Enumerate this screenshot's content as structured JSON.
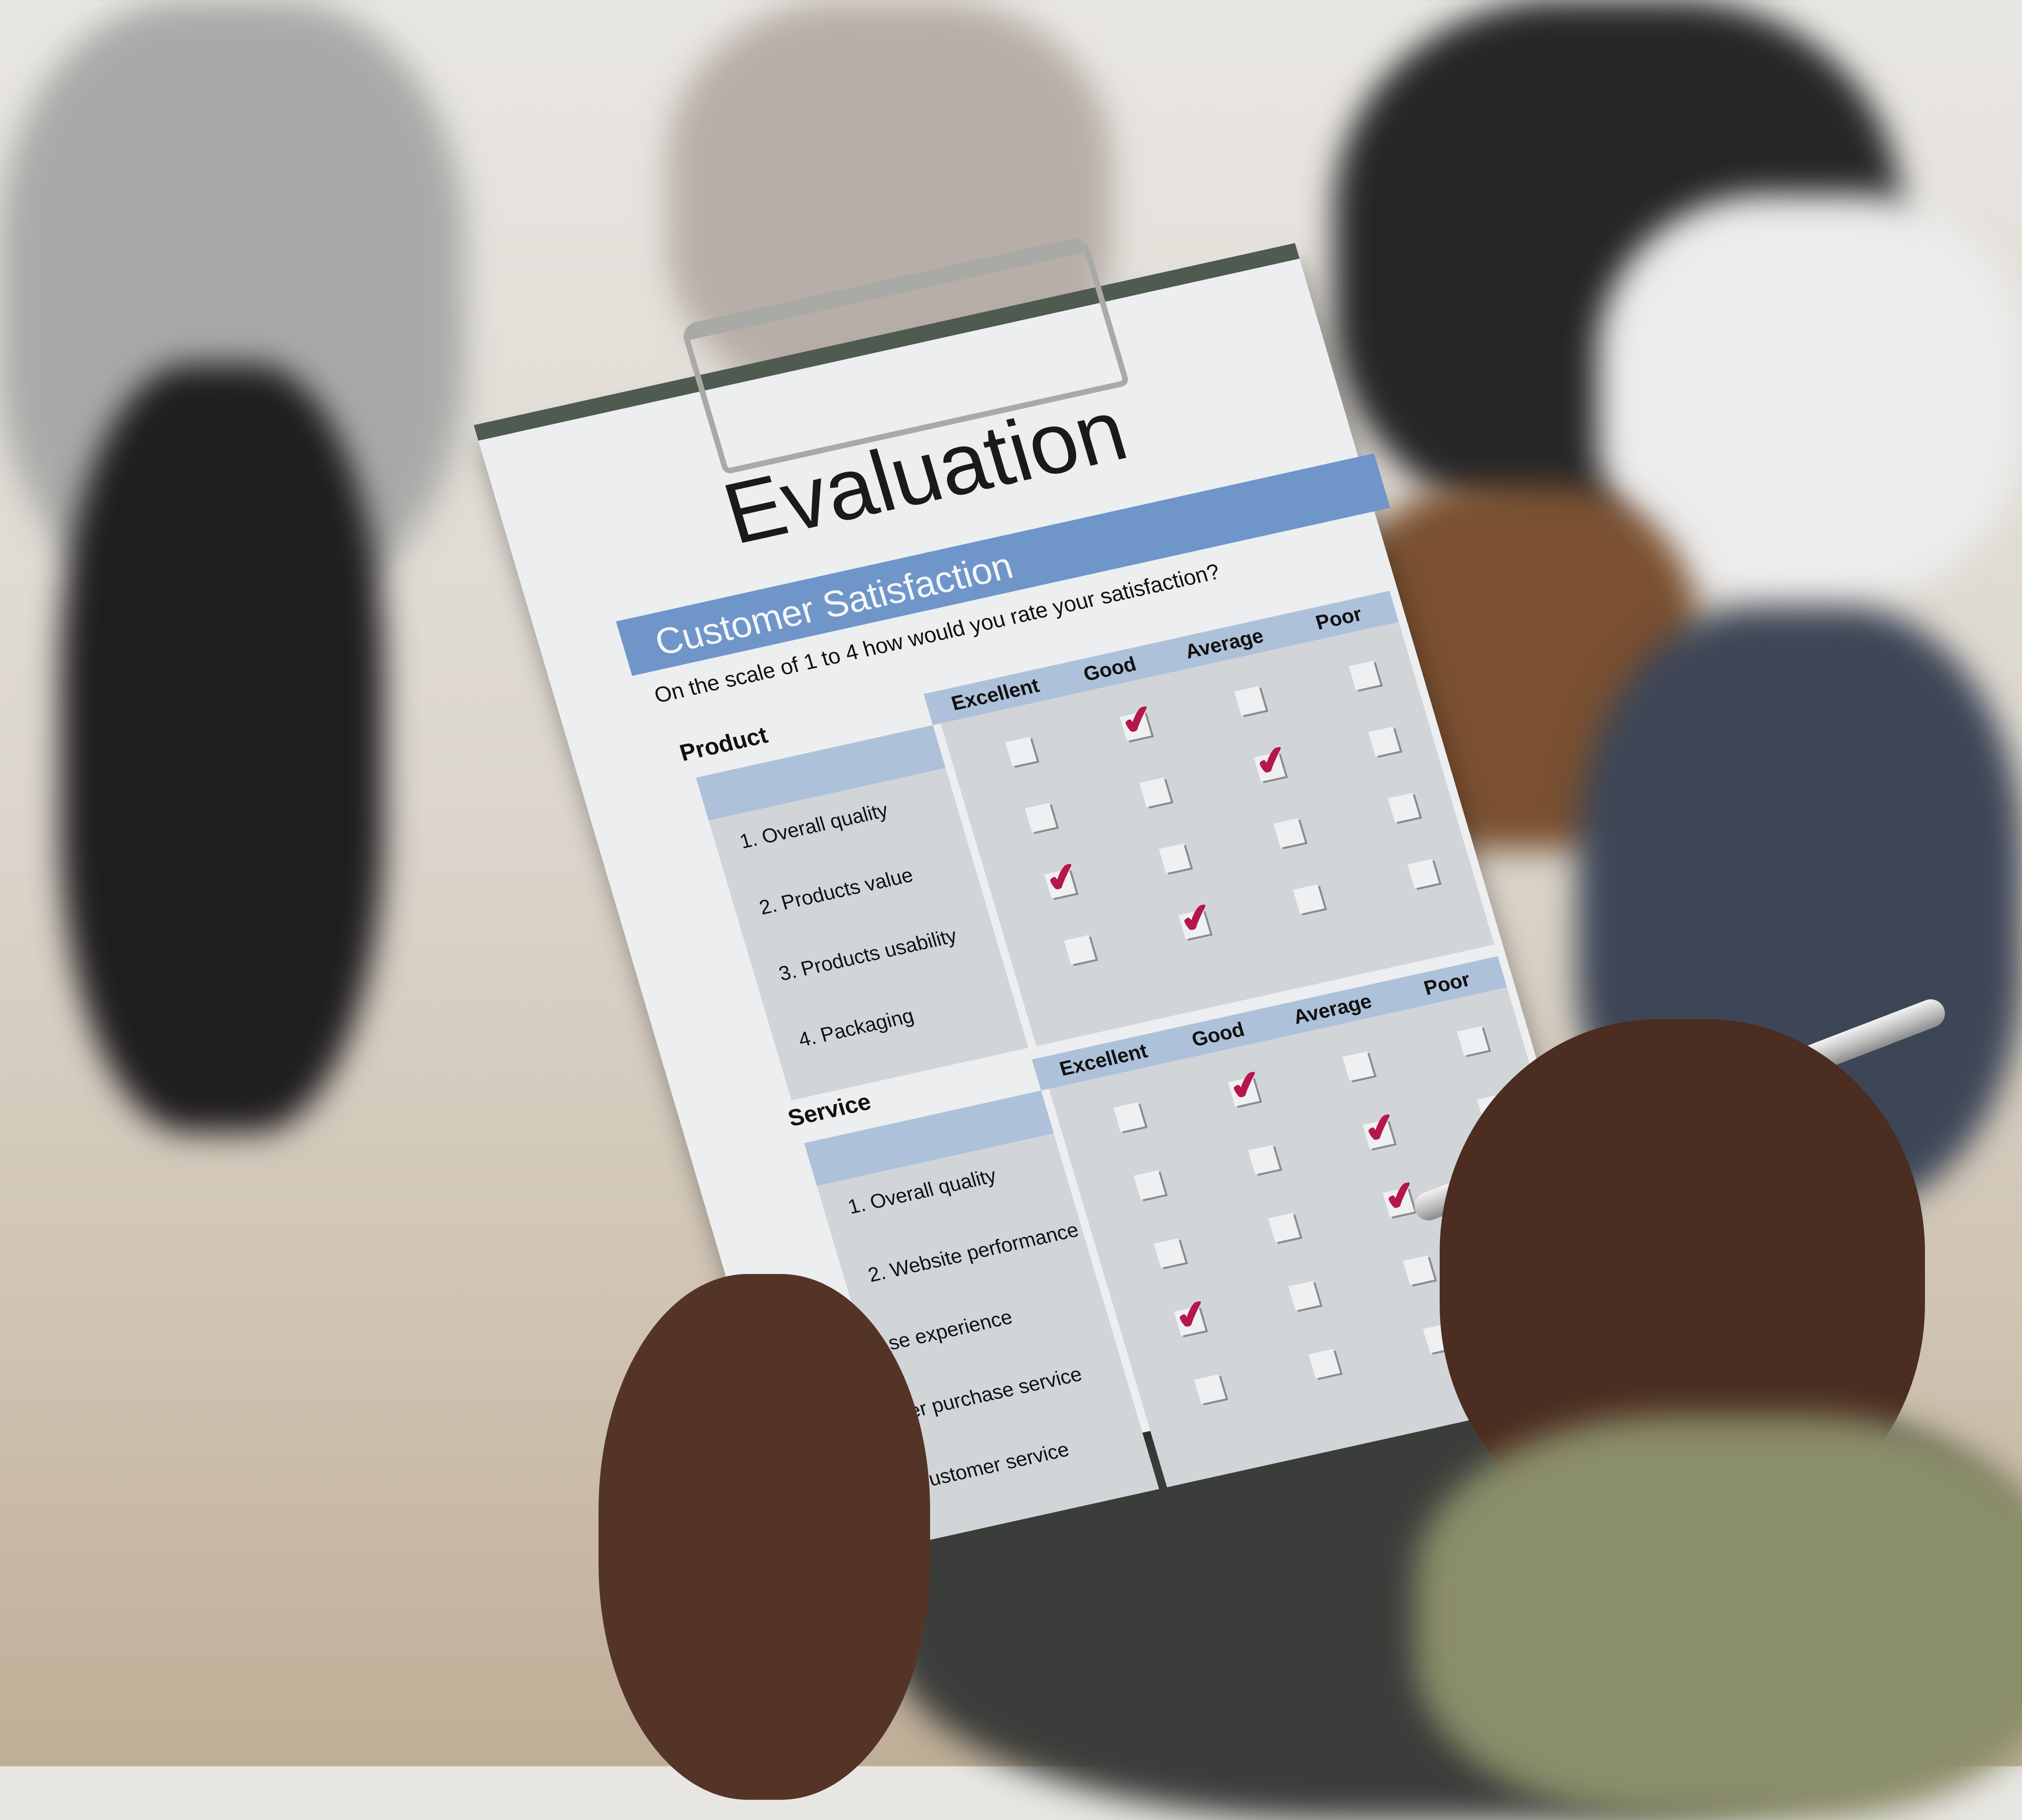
{
  "form": {
    "title": "Evaluation",
    "banner": "Customer Satisfaction",
    "question": "On the scale of 1 to 4 how would you rate your satisfaction?",
    "columns": [
      "Excellent",
      "Good",
      "Average",
      "Poor"
    ],
    "check_color": "#b5164b",
    "accent": "#7095c8",
    "product": {
      "title": "Product",
      "rows": [
        "1. Overall quality",
        "2. Products value",
        "3. Products usability",
        "4. Packaging"
      ],
      "checked": [
        "Good",
        "Average",
        "Excellent",
        "Good"
      ]
    },
    "service": {
      "title": "Service",
      "rows": [
        "1. Overall quality",
        "2. Website performance",
        "se experience",
        "er purchase service",
        "ustomer service"
      ],
      "checked": [
        "Good",
        "Average",
        "Average",
        "Excellent",
        null
      ]
    }
  }
}
